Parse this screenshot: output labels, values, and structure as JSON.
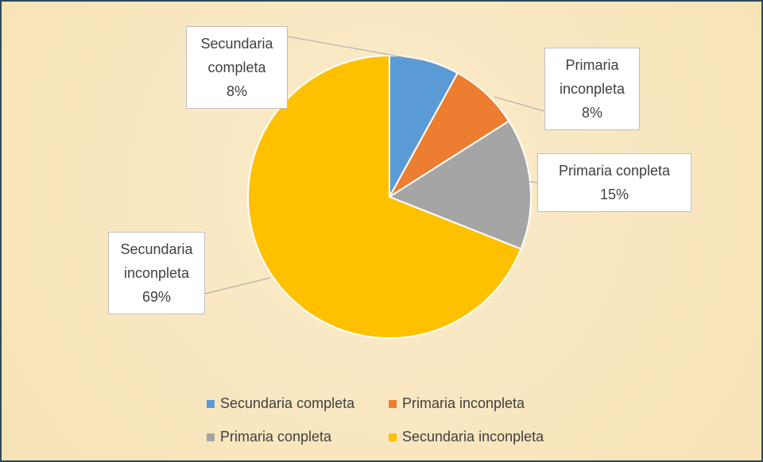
{
  "chart_data": {
    "type": "pie",
    "categories": [
      "Secundaria completa",
      "Primaria inconpleta",
      "Primaria conpleta",
      "Secundaria inconpleta"
    ],
    "values": [
      8,
      8,
      15,
      69
    ],
    "value_labels": [
      "8%",
      "8%",
      "15%",
      "69%"
    ],
    "colors": [
      "#5b9bd5",
      "#ed7d31",
      "#a5a5a5",
      "#ffc000"
    ],
    "legend": "bottom"
  }
}
